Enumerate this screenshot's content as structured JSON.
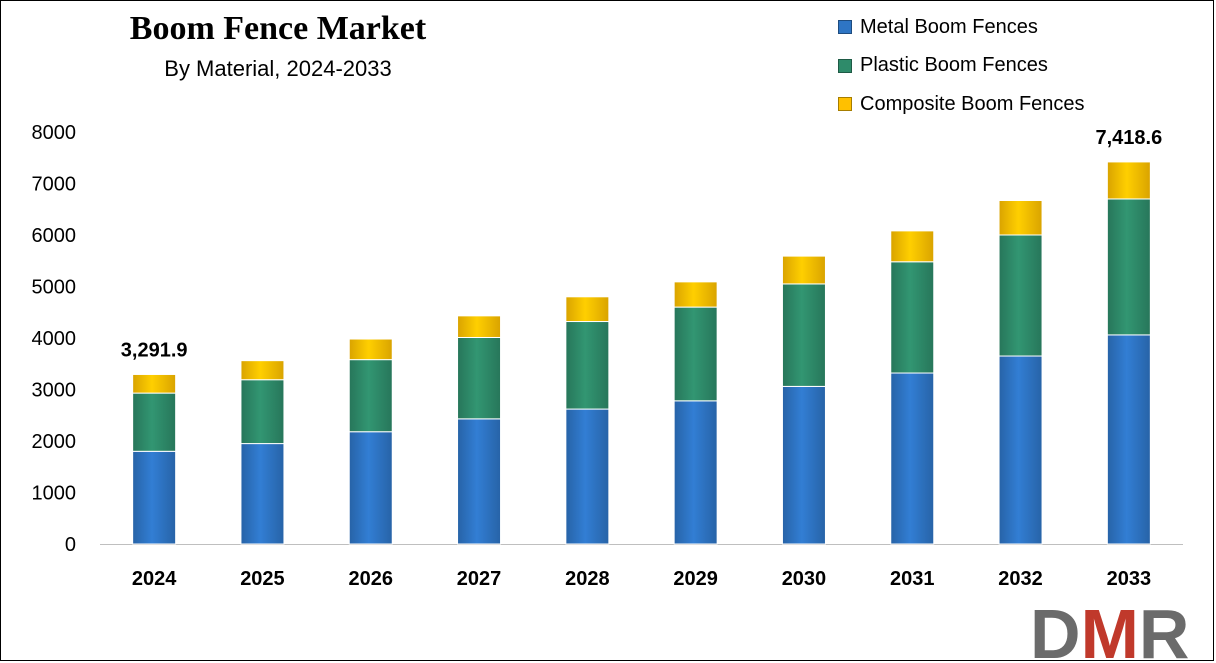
{
  "chart_data": {
    "type": "bar",
    "stacked": true,
    "title": "Boom Fence Market",
    "subtitle": "By Material, 2024-2033",
    "categories": [
      "2024",
      "2025",
      "2026",
      "2027",
      "2028",
      "2029",
      "2030",
      "2031",
      "2032",
      "2033"
    ],
    "series": [
      {
        "name": "Metal Boom Fences",
        "color": "#2E75C4",
        "values": [
          1800,
          1950,
          2180,
          2430,
          2620,
          2780,
          3060,
          3320,
          3650,
          4060
        ]
      },
      {
        "name": "Plastic Boom Fences",
        "color": "#2E8B6A",
        "values": [
          1130,
          1240,
          1400,
          1580,
          1700,
          1820,
          1990,
          2160,
          2350,
          2640
        ]
      },
      {
        "name": "Composite Boom Fences",
        "color": "#FFC000",
        "values": [
          362,
          370,
          400,
          420,
          480,
          490,
          540,
          600,
          670,
          719
        ]
      }
    ],
    "data_labels": [
      {
        "category": "2024",
        "text": "3,291.9"
      },
      {
        "category": "2033",
        "text": "7,418.6"
      }
    ],
    "yticks": [
      "0",
      "1000",
      "2000",
      "3000",
      "4000",
      "5000",
      "6000",
      "7000",
      "8000"
    ],
    "ylim": [
      0,
      8000
    ],
    "grid": false,
    "legend": "top-right"
  },
  "watermark": {
    "text": "DMR",
    "colors": [
      "#6B6B6B",
      "#C0392B",
      "#6B6B6B"
    ]
  }
}
